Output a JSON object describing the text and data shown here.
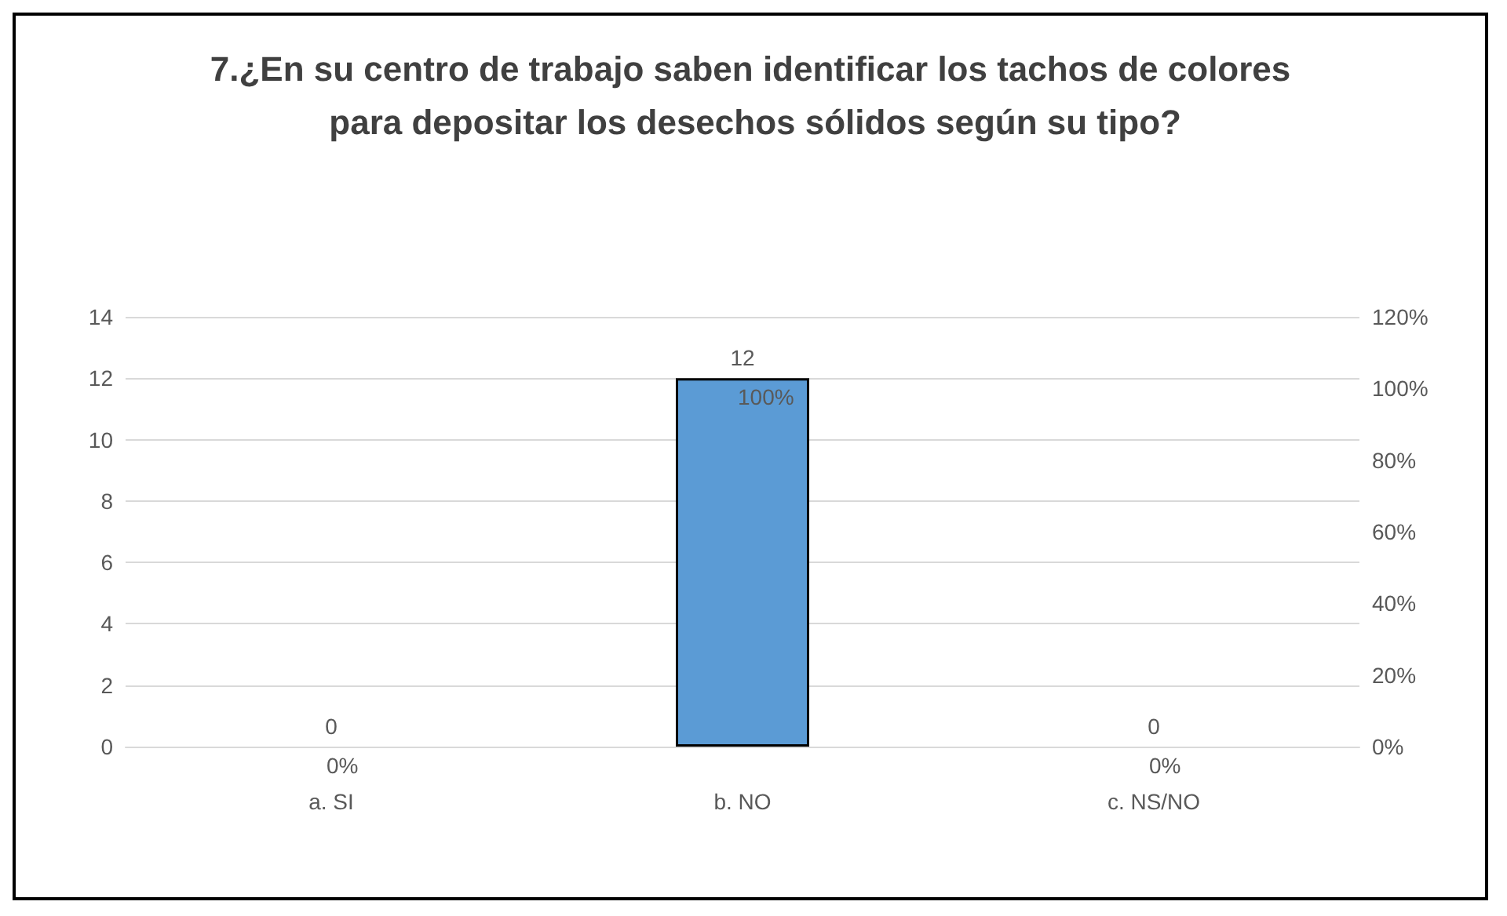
{
  "chart_data": {
    "type": "bar",
    "title": "7.¿En su centro de trabajo saben identificar los tachos de colores para depositar los desechos sólidos según su tipo?",
    "categories": [
      "a. SI",
      "b. NO",
      "c. NS/NO"
    ],
    "series": [
      {
        "color": "#5b9bd5",
        "values": [
          0,
          12,
          0
        ]
      }
    ],
    "data_labels": true,
    "annotations": [
      {
        "text": "0%",
        "x": "a. SI",
        "y": 0
      },
      {
        "text": "100%",
        "x": "b. NO",
        "y": 12
      },
      {
        "text": "0%",
        "x": "c. NS/NO",
        "y": 0
      }
    ],
    "ylim": [
      0,
      14
    ],
    "yticks": [
      0,
      2,
      4,
      6,
      8,
      10,
      12,
      14
    ],
    "y2lim": [
      0,
      120
    ],
    "y2ticks": [
      {
        "value": 0,
        "label": "0%"
      },
      {
        "value": 20,
        "label": "20%"
      },
      {
        "value": 40,
        "label": "40%"
      },
      {
        "value": 60,
        "label": "60%"
      },
      {
        "value": 80,
        "label": "80%"
      },
      {
        "value": 100,
        "label": "100%"
      },
      {
        "value": 120,
        "label": "120%"
      }
    ],
    "grid": "y"
  }
}
